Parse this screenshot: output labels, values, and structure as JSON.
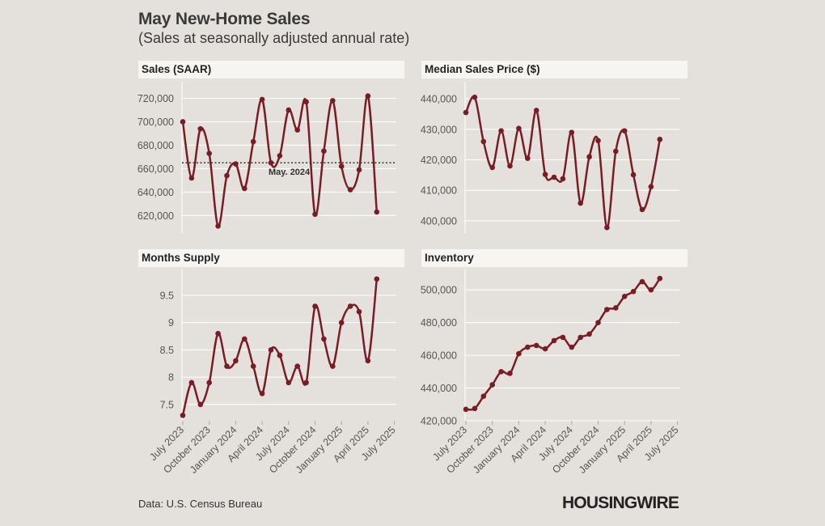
{
  "title": "May New-Home Sales",
  "subtitle": "(Sales at seasonally adjusted annual rate)",
  "source": "Data: U.S. Census Bureau",
  "logo": "HOUSINGWIRE",
  "colors": {
    "line": "#7a1c26",
    "grid": "#ffffff",
    "background": "#e4e1dc",
    "header_bg": "#f7f5f1",
    "axis_text": "#555555"
  },
  "chart_data": [
    {
      "id": "sales",
      "type": "line",
      "title": "Sales (SAAR)",
      "x": [
        "2023-07",
        "2023-08",
        "2023-09",
        "2023-10",
        "2023-11",
        "2023-12",
        "2024-01",
        "2024-02",
        "2024-03",
        "2024-04",
        "2024-05",
        "2024-06",
        "2024-07",
        "2024-08",
        "2024-09",
        "2024-10",
        "2024-11",
        "2024-12",
        "2025-01",
        "2025-02",
        "2025-03",
        "2025-04",
        "2025-05"
      ],
      "values": [
        700000,
        652000,
        694000,
        673000,
        611000,
        654000,
        664000,
        643000,
        683000,
        719000,
        665000,
        671000,
        710000,
        693000,
        717000,
        621000,
        675000,
        718000,
        662000,
        642000,
        659000,
        722000,
        623000
      ],
      "ylim": [
        605000,
        730000
      ],
      "yticks": [
        620000,
        640000,
        660000,
        680000,
        700000,
        720000
      ],
      "ytick_labels": [
        "620,000",
        "640,000",
        "660,000",
        "680,000",
        "700,000",
        "720,000"
      ],
      "reference_line": {
        "value": 665000,
        "label": "May. 2024",
        "style": "dotted"
      }
    },
    {
      "id": "price",
      "type": "line",
      "title": "Median Sales Price ($)",
      "x": [
        "2023-07",
        "2023-08",
        "2023-09",
        "2023-10",
        "2023-11",
        "2023-12",
        "2024-01",
        "2024-02",
        "2024-03",
        "2024-04",
        "2024-05",
        "2024-06",
        "2024-07",
        "2024-08",
        "2024-09",
        "2024-10",
        "2024-11",
        "2024-12",
        "2025-01",
        "2025-02",
        "2025-03",
        "2025-04",
        "2025-05"
      ],
      "values": [
        435500,
        440500,
        426000,
        417500,
        429500,
        418000,
        430300,
        420500,
        436200,
        415200,
        414300,
        413800,
        429000,
        405800,
        421000,
        426300,
        397800,
        422800,
        429500,
        415100,
        403700,
        411200,
        426700
      ],
      "ylim": [
        396000,
        444000
      ],
      "yticks": [
        400000,
        410000,
        420000,
        430000,
        440000
      ],
      "ytick_labels": [
        "400,000",
        "410,000",
        "420,000",
        "430,000",
        "440,000"
      ]
    },
    {
      "id": "supply",
      "type": "line",
      "title": "Months Supply",
      "x": [
        "2023-07",
        "2023-08",
        "2023-09",
        "2023-10",
        "2023-11",
        "2023-12",
        "2024-01",
        "2024-02",
        "2024-03",
        "2024-04",
        "2024-05",
        "2024-06",
        "2024-07",
        "2024-08",
        "2024-09",
        "2024-10",
        "2024-11",
        "2024-12",
        "2025-01",
        "2025-02",
        "2025-03",
        "2025-04",
        "2025-05"
      ],
      "values": [
        7.3,
        7.9,
        7.5,
        7.9,
        8.8,
        8.2,
        8.3,
        8.7,
        8.2,
        7.7,
        8.5,
        8.4,
        7.9,
        8.2,
        7.9,
        9.3,
        8.7,
        8.2,
        9.0,
        9.3,
        9.2,
        8.3,
        9.8
      ],
      "ylim": [
        7.2,
        9.9
      ],
      "yticks": [
        7.5,
        8,
        8.5,
        9,
        9.5
      ],
      "ytick_labels": [
        "7.5",
        "8",
        "8.5",
        "9",
        "9.5"
      ]
    },
    {
      "id": "inventory",
      "type": "line",
      "title": "Inventory",
      "x": [
        "2023-07",
        "2023-08",
        "2023-09",
        "2023-10",
        "2023-11",
        "2023-12",
        "2024-01",
        "2024-02",
        "2024-03",
        "2024-04",
        "2024-05",
        "2024-06",
        "2024-07",
        "2024-08",
        "2024-09",
        "2024-10",
        "2024-11",
        "2024-12",
        "2025-01",
        "2025-02",
        "2025-03",
        "2025-04",
        "2025-05"
      ],
      "values": [
        427000,
        427500,
        435000,
        442000,
        450000,
        449000,
        461000,
        465000,
        466000,
        464000,
        469000,
        471000,
        465000,
        471000,
        473000,
        480000,
        488000,
        489000,
        496000,
        499000,
        505000,
        500000,
        507000
      ],
      "ylim": [
        420000,
        510000
      ],
      "yticks": [
        420000,
        440000,
        460000,
        480000,
        500000
      ],
      "ytick_labels": [
        "420,000",
        "440,000",
        "460,000",
        "480,000",
        "500,000"
      ]
    }
  ],
  "x_axis": {
    "tick_labels": [
      "July 2023",
      "October 2023",
      "January 2024",
      "April 2024",
      "July 2024",
      "October 2024",
      "January 2025",
      "April 2025",
      "July 2025"
    ],
    "tick_index": [
      0,
      3,
      6,
      9,
      12,
      15,
      18,
      21,
      24
    ]
  }
}
